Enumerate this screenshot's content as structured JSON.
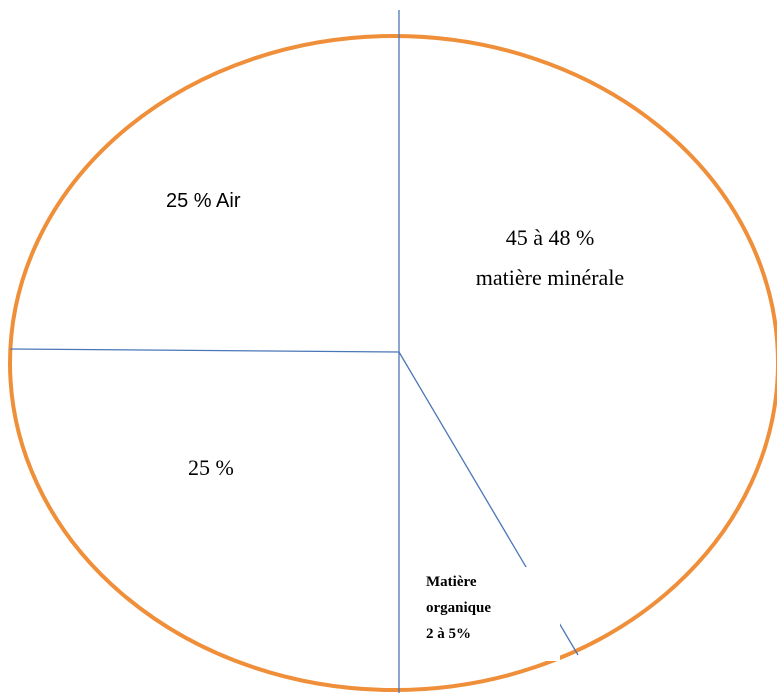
{
  "diagram": {
    "colors": {
      "outline": "#ef8f3a",
      "dividers": "#4a76b8",
      "text": "#000000"
    },
    "segments": [
      {
        "id": "air",
        "lines": [
          "25 % Air"
        ]
      },
      {
        "id": "mineral",
        "lines": [
          "45 à 48 %",
          "matière minérale"
        ]
      },
      {
        "id": "water",
        "lines": [
          "25 %"
        ]
      },
      {
        "id": "organic",
        "lines": [
          "Matière",
          "organique",
          "2 à 5%"
        ]
      }
    ]
  }
}
